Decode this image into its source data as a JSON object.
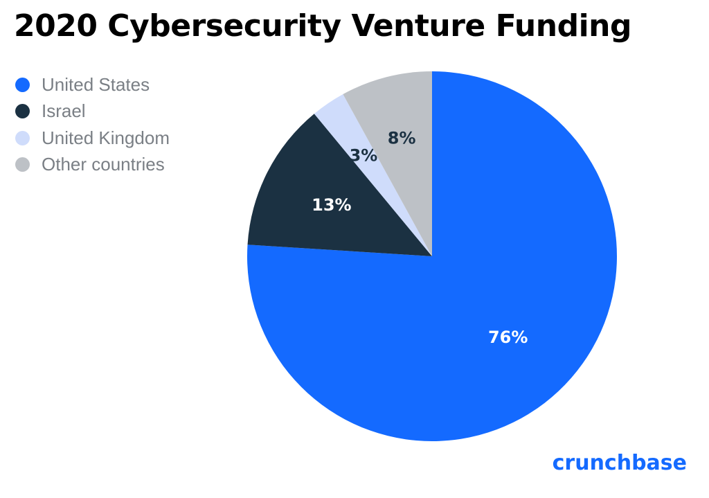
{
  "chart_data": {
    "type": "pie",
    "title": "2020 Cybersecurity Venture Funding",
    "categories": [
      "United States",
      "Israel",
      "United Kingdom",
      "Other countries"
    ],
    "values": [
      76,
      13,
      3,
      8
    ],
    "data_labels": [
      "76%",
      "13%",
      "3%",
      "8%"
    ],
    "colors": [
      "#146aff",
      "#1b3142",
      "#cfdcfb",
      "#bdc1c6"
    ],
    "label_colors": [
      "#ffffff",
      "#ffffff",
      "#1b3142",
      "#1b3142"
    ],
    "legend_position": "top-left",
    "start_angle": "12 o'clock",
    "direction": "clockwise"
  },
  "brand": {
    "logo_text": "crunchbase"
  }
}
